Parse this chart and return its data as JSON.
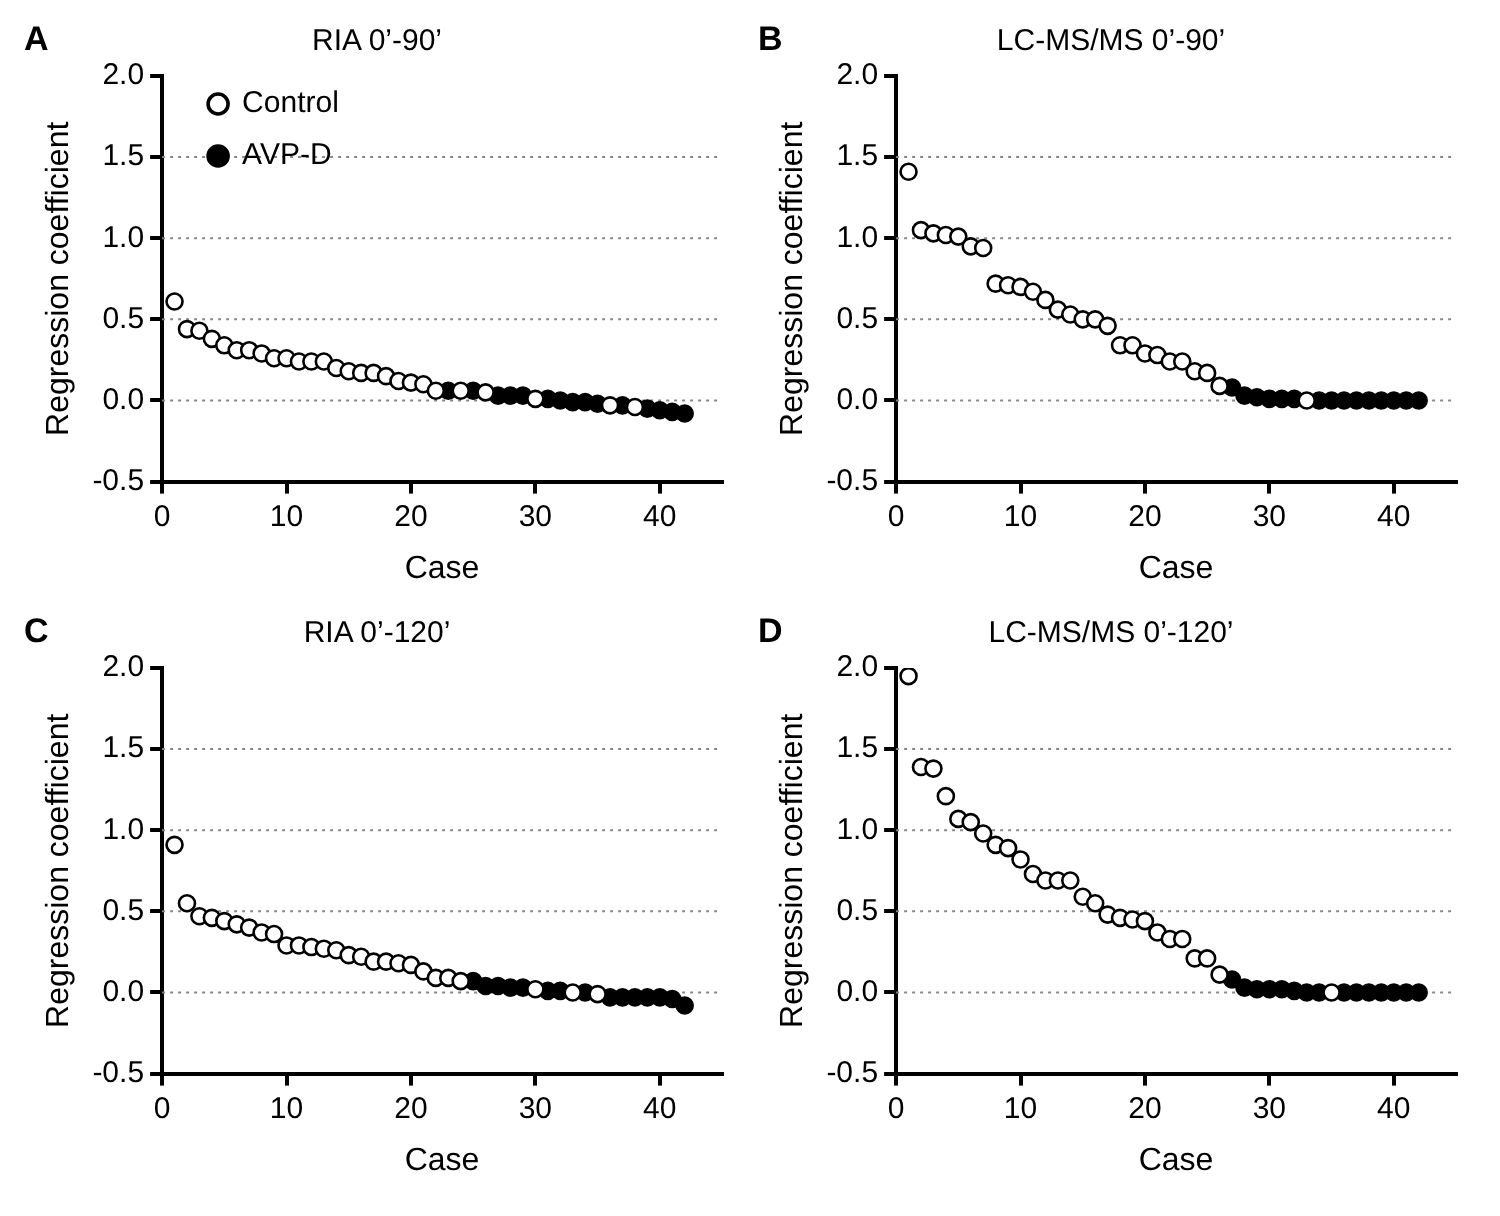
{
  "chart_data": [
    {
      "type": "scatter",
      "title": "RIA 0’-90’",
      "xlabel": "Case",
      "ylabel": "Regression coefficient",
      "annotations": [
        "A"
      ],
      "legend": "top left",
      "marker": "circle",
      "grid": "y",
      "xlim": [
        0,
        45
      ],
      "xticks": [
        0,
        10,
        20,
        30,
        40
      ],
      "ylim": [
        -0.5,
        2.0
      ],
      "yticks": [
        -0.5,
        {
          "value": 0,
          "label": "0.0"
        },
        0.5,
        {
          "value": 1,
          "label": "1.0"
        },
        1.5,
        {
          "value": 2,
          "label": "2.0"
        }
      ],
      "series": [
        {
          "name": "Control",
          "color": "#ffffff",
          "x": [
            1,
            2,
            3,
            4,
            5,
            6,
            7,
            8,
            9,
            10,
            11,
            12,
            13,
            14,
            15,
            16,
            17,
            18,
            19,
            20,
            21,
            22,
            24,
            26,
            30,
            36,
            38
          ],
          "values": [
            0.61,
            0.44,
            0.43,
            0.38,
            0.34,
            0.31,
            0.31,
            0.29,
            0.26,
            0.26,
            0.24,
            0.24,
            0.24,
            0.2,
            0.18,
            0.17,
            0.17,
            0.15,
            0.12,
            0.11,
            0.1,
            0.06,
            0.06,
            0.05,
            0.01,
            -0.03,
            -0.04
          ]
        },
        {
          "name": "AVP-D",
          "color": "#000000",
          "x": [
            23,
            25,
            27,
            28,
            29,
            31,
            32,
            33,
            34,
            35,
            37,
            39,
            40,
            41,
            42
          ],
          "values": [
            0.06,
            0.06,
            0.03,
            0.03,
            0.03,
            0.01,
            0,
            -0.01,
            -0.01,
            -0.02,
            -0.03,
            -0.05,
            -0.06,
            -0.07,
            -0.08
          ]
        }
      ]
    },
    {
      "type": "scatter",
      "title": "LC-MS/MS 0’-90’",
      "xlabel": "Case",
      "ylabel": "Regression coefficient",
      "annotations": [
        "B"
      ],
      "marker": "circle",
      "grid": "y",
      "xlim": [
        0,
        45
      ],
      "xticks": [
        0,
        10,
        20,
        30,
        40
      ],
      "ylim": [
        -0.5,
        2.0
      ],
      "yticks": [
        -0.5,
        {
          "value": 0,
          "label": "0.0"
        },
        0.5,
        {
          "value": 1,
          "label": "1.0"
        },
        1.5,
        {
          "value": 2,
          "label": "2.0"
        }
      ],
      "series": [
        {
          "color": "#ffffff",
          "x": [
            1,
            2,
            3,
            4,
            5,
            6,
            7,
            8,
            9,
            10,
            11,
            12,
            13,
            14,
            15,
            16,
            17,
            18,
            19,
            20,
            21,
            22,
            23,
            24,
            25,
            26,
            33
          ],
          "values": [
            1.41,
            1.05,
            1.03,
            1.02,
            1.01,
            0.95,
            0.94,
            0.72,
            0.71,
            0.7,
            0.67,
            0.62,
            0.56,
            0.53,
            0.5,
            0.5,
            0.46,
            0.34,
            0.34,
            0.29,
            0.28,
            0.24,
            0.24,
            0.18,
            0.17,
            0.09,
            0
          ]
        },
        {
          "color": "#000000",
          "x": [
            27,
            28,
            29,
            30,
            31,
            32,
            34,
            35,
            36,
            37,
            38,
            39,
            40,
            41,
            42
          ],
          "values": [
            0.08,
            0.03,
            0.02,
            0.01,
            0.01,
            0.01,
            0,
            0,
            0,
            0,
            0,
            0,
            0,
            0,
            0
          ]
        }
      ]
    },
    {
      "type": "scatter",
      "title": "RIA 0’-120’",
      "xlabel": "Case",
      "ylabel": "Regression coefficient",
      "annotations": [
        "C"
      ],
      "marker": "circle",
      "grid": "y",
      "xlim": [
        0,
        45
      ],
      "xticks": [
        0,
        10,
        20,
        30,
        40
      ],
      "ylim": [
        -0.5,
        2.0
      ],
      "yticks": [
        -0.5,
        {
          "value": 0,
          "label": "0.0"
        },
        0.5,
        {
          "value": 1,
          "label": "1.0"
        },
        1.5,
        {
          "value": 2,
          "label": "2.0"
        }
      ],
      "series": [
        {
          "color": "#ffffff",
          "x": [
            1,
            2,
            3,
            4,
            5,
            6,
            7,
            8,
            9,
            10,
            11,
            12,
            13,
            14,
            15,
            16,
            17,
            18,
            19,
            20,
            21,
            22,
            23,
            24,
            30,
            33,
            35
          ],
          "values": [
            0.91,
            0.55,
            0.47,
            0.46,
            0.44,
            0.42,
            0.4,
            0.37,
            0.36,
            0.29,
            0.29,
            0.28,
            0.27,
            0.26,
            0.23,
            0.22,
            0.19,
            0.19,
            0.18,
            0.17,
            0.13,
            0.09,
            0.09,
            0.07,
            0.02,
            0,
            -0.01
          ]
        },
        {
          "color": "#000000",
          "x": [
            25,
            26,
            27,
            28,
            29,
            31,
            32,
            34,
            36,
            37,
            38,
            39,
            40,
            41,
            42
          ],
          "values": [
            0.07,
            0.04,
            0.04,
            0.03,
            0.03,
            0.01,
            0.01,
            0,
            -0.03,
            -0.03,
            -0.03,
            -0.03,
            -0.03,
            -0.04,
            -0.08
          ]
        }
      ]
    },
    {
      "type": "scatter",
      "title": "LC-MS/MS 0’-120’",
      "xlabel": "Case",
      "ylabel": "Regression coefficient",
      "annotations": [
        "D"
      ],
      "marker": "circle",
      "grid": "y",
      "xlim": [
        0,
        45
      ],
      "xticks": [
        0,
        10,
        20,
        30,
        40
      ],
      "ylim": [
        -0.5,
        2.0
      ],
      "yticks": [
        -0.5,
        {
          "value": 0,
          "label": "0.0"
        },
        0.5,
        {
          "value": 1,
          "label": "1.0"
        },
        1.5,
        {
          "value": 2,
          "label": "2.0"
        }
      ],
      "series": [
        {
          "color": "#ffffff",
          "x": [
            1,
            2,
            3,
            4,
            5,
            6,
            7,
            8,
            9,
            10,
            11,
            12,
            13,
            14,
            15,
            16,
            17,
            18,
            19,
            20,
            21,
            22,
            23,
            24,
            25,
            26,
            35
          ],
          "values": [
            1.95,
            1.39,
            1.38,
            1.21,
            1.07,
            1.05,
            0.98,
            0.91,
            0.89,
            0.82,
            0.73,
            0.69,
            0.69,
            0.69,
            0.59,
            0.55,
            0.48,
            0.46,
            0.45,
            0.44,
            0.37,
            0.33,
            0.33,
            0.21,
            0.21,
            0.11,
            0
          ]
        },
        {
          "color": "#000000",
          "x": [
            27,
            28,
            29,
            30,
            31,
            32,
            33,
            34,
            36,
            37,
            38,
            39,
            40,
            41,
            42
          ],
          "values": [
            0.08,
            0.03,
            0.02,
            0.02,
            0.02,
            0.01,
            0,
            0,
            0,
            0,
            0,
            0,
            0,
            0,
            0
          ]
        }
      ]
    }
  ]
}
